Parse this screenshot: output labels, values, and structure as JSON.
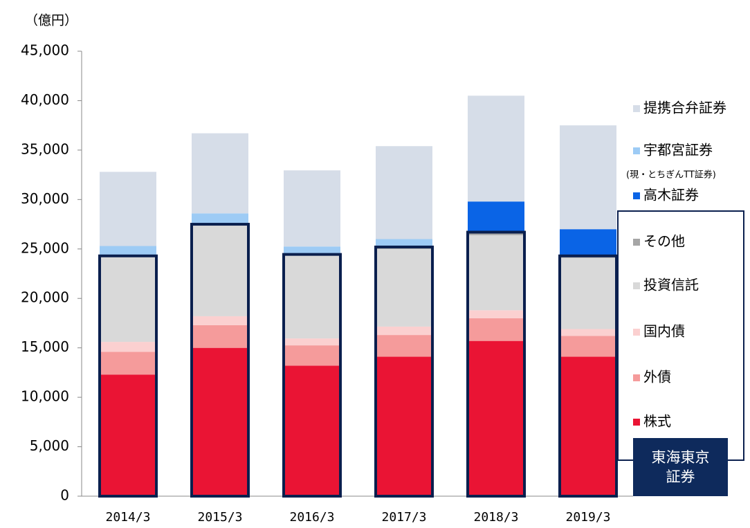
{
  "chart_data": {
    "type": "stacked_bar",
    "unit_label": "（億円）",
    "categories": [
      "2014/3",
      "2015/3",
      "2016/3",
      "2017/3",
      "2018/3",
      "2019/3"
    ],
    "series": [
      {
        "name": "株式",
        "color": "#ea1434",
        "values": [
          12300,
          15000,
          13200,
          14100,
          15700,
          14100
        ]
      },
      {
        "name": "外債",
        "color": "#f59b9b",
        "values": [
          2300,
          2300,
          2050,
          2200,
          2300,
          2100
        ]
      },
      {
        "name": "国内債",
        "color": "#fbd0d0",
        "values": [
          1000,
          900,
          700,
          850,
          800,
          700
        ]
      },
      {
        "name": "投資信託",
        "color": "#d9d9d9",
        "values": [
          8600,
          9200,
          8400,
          7850,
          7600,
          7200
        ]
      },
      {
        "name": "その他",
        "color": "#a6a6a6",
        "values": [
          100,
          100,
          100,
          200,
          300,
          200
        ]
      },
      {
        "name": "高木証券",
        "color": "#0a64e6",
        "values": [
          0,
          0,
          0,
          0,
          3100,
          2700
        ]
      },
      {
        "name": "宇都宮証券",
        "color": "#9dcbf5",
        "values": [
          1000,
          1100,
          800,
          800,
          0,
          0
        ]
      },
      {
        "name": "提携合弁証券",
        "color": "#d6dde8",
        "values": [
          7500,
          8100,
          7700,
          9400,
          10700,
          10500
        ]
      }
    ],
    "legend_note": "(現・とちぎんTT証券)",
    "group_label": "東海東京証券",
    "group_series_count": 5,
    "ylim": [
      0,
      45000
    ],
    "yticks": [
      0,
      {
        "value": 5000,
        "label": "5,000"
      },
      {
        "value": 10000,
        "label": "10,000"
      },
      {
        "value": 15000,
        "label": "15,000"
      },
      {
        "value": 20000,
        "label": "20,000"
      },
      {
        "value": 25000,
        "label": "25,000"
      },
      {
        "value": 30000,
        "label": "30,000"
      },
      {
        "value": 35000,
        "label": "35,000"
      },
      {
        "value": 40000,
        "label": "40,000"
      },
      {
        "value": 45000,
        "label": "45,000"
      }
    ],
    "grid": false
  }
}
